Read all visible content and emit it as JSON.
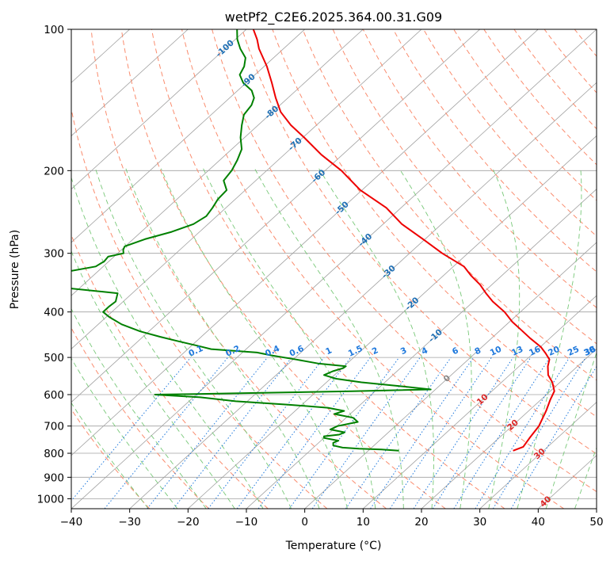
{
  "chart_data": {
    "type": "line",
    "title": "wetPf2_C2E6.2025.364.00.31.G09",
    "xlabel": "Temperature (°C)",
    "ylabel": "Pressure (hPa)",
    "xlim": [
      -40,
      50
    ],
    "ylim": [
      1050,
      100
    ],
    "y_scale": "log (skew-T)",
    "grid": true,
    "x_ticks": [
      "−40",
      "−30",
      "−20",
      "−10",
      "0",
      "10",
      "20",
      "30",
      "40",
      "50"
    ],
    "y_ticks": [
      "100",
      "200",
      "300",
      "400",
      "500",
      "600",
      "700",
      "800",
      "900",
      "1000"
    ],
    "colors": {
      "temperature": "#ee0000",
      "dewpoint": "#008000",
      "isotherm": "#a0a0a0",
      "isobar": "#a0a0a0",
      "dry_adiabat": "#fa8c6e",
      "moist_adiabat": "#78c878",
      "mixing_ratio": "#1e78dc",
      "isotherm_label": "#1f6fb4",
      "warm_label": "#dc2828",
      "zero_label": "#888888"
    },
    "series": [
      {
        "role": "temperature",
        "p": [
          790,
          775,
          740,
          700,
          650,
          615,
          590,
          565,
          545,
          522,
          505,
          490,
          475,
          455,
          435,
          420,
          400,
          380,
          365,
          350,
          335,
          320,
          300,
          280,
          260,
          240,
          220,
          200,
          185,
          170,
          160,
          150,
          140,
          130,
          120,
          110,
          105,
          100
        ],
        "t": [
          24.8,
          25.8,
          25.2,
          24.6,
          23.0,
          21.6,
          20.7,
          18.7,
          16.6,
          14.9,
          13.9,
          12.1,
          10.1,
          6.6,
          3.2,
          0.5,
          -2.7,
          -6.7,
          -9.4,
          -12.0,
          -15.2,
          -18.2,
          -24.4,
          -30.3,
          -36.8,
          -42.5,
          -50.3,
          -57.2,
          -63.6,
          -69.8,
          -74.4,
          -78.6,
          -82.1,
          -85.6,
          -89.5,
          -94.2,
          -96.3,
          -98.8
        ]
      },
      {
        "role": "dewpoint",
        "p": [
          790,
          785,
          782,
          778,
          770,
          760,
          752,
          742,
          736,
          730,
          722,
          712,
          700,
          686,
          672,
          660,
          650,
          640,
          630,
          620,
          608,
          600,
          598,
          595,
          590,
          585,
          575,
          565,
          555,
          545,
          535,
          527,
          522,
          515,
          505,
          495,
          488,
          480,
          472,
          462,
          452,
          440,
          425,
          410,
          400,
          390,
          380,
          365,
          355,
          350,
          340,
          330,
          320,
          312,
          305,
          300,
          295,
          290,
          280,
          270,
          260,
          250,
          240,
          230,
          220,
          210,
          200,
          190,
          180,
          170,
          160,
          152,
          145,
          140,
          135,
          130,
          125,
          120,
          115,
          110,
          105,
          100
        ],
        "t": [
          5.2,
          2.0,
          -2.0,
          -5.0,
          -7.0,
          -7.5,
          -7.0,
          -10.0,
          -10.3,
          -8.0,
          -7.5,
          -10.5,
          -9.9,
          -7.2,
          -8.8,
          -12.7,
          -11.6,
          -15.0,
          -22.6,
          -32.0,
          -38.8,
          -47.1,
          -40.0,
          -30.0,
          -14.0,
          -0.8,
          -7.0,
          -14.0,
          -19.0,
          -21.8,
          -21.0,
          -19.8,
          -19.7,
          -25.0,
          -29.5,
          -34.5,
          -37.5,
          -46.0,
          -49.0,
          -53.0,
          -57.0,
          -61.5,
          -66.0,
          -69.5,
          -71.5,
          -71.5,
          -71.3,
          -72.5,
          -83.0,
          -90.4,
          -90.9,
          -86.0,
          -81.3,
          -80.8,
          -81.0,
          -79.0,
          -79.7,
          -80.1,
          -78.0,
          -74.8,
          -72.5,
          -71.8,
          -72.3,
          -73.0,
          -73.2,
          -75.5,
          -76.0,
          -77.0,
          -78.3,
          -80.7,
          -82.8,
          -84.4,
          -84.9,
          -85.8,
          -87.6,
          -90.5,
          -92.6,
          -93.4,
          -94.8,
          -97.4,
          -99.7,
          -101.6
        ]
      }
    ],
    "isotherm_labels": [
      "-100",
      "-90",
      "-80",
      "-70",
      "-60",
      "-50",
      "-40",
      "-30",
      "-20",
      "-10"
    ],
    "warm_isotherm_labels": [
      "0",
      "10",
      "20",
      "30",
      "40"
    ],
    "mixing_ratio_labels": [
      "0.1",
      "0.2",
      "0.4",
      "0.6",
      "1",
      "1.5",
      "2",
      "3",
      "4",
      "6",
      "8",
      "10",
      "13",
      "16",
      "20",
      "25",
      "30",
      "36"
    ]
  }
}
